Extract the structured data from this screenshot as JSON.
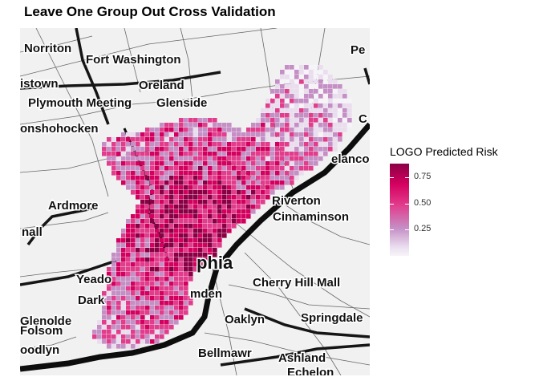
{
  "title": "Leave One Group Out Cross Validation",
  "map": {
    "place_labels": [
      {
        "name": "Norriton",
        "id": "norriton"
      },
      {
        "name": "Fort Washington",
        "id": "fort-washington"
      },
      {
        "name": "Pe",
        "id": "pe"
      },
      {
        "name": "istown",
        "id": "istown"
      },
      {
        "name": "Oreland",
        "id": "oreland"
      },
      {
        "name": "Plymouth Meeting",
        "id": "plymouth-meeting"
      },
      {
        "name": "Glenside",
        "id": "glenside"
      },
      {
        "name": "onshohocken",
        "id": "onshohocken"
      },
      {
        "name": "C",
        "id": "c"
      },
      {
        "name": "elanco",
        "id": "elanco"
      },
      {
        "name": "Ardmore",
        "id": "ardmore"
      },
      {
        "name": "Riverton",
        "id": "riverton"
      },
      {
        "name": "Cinnaminson",
        "id": "cinnaminson"
      },
      {
        "name": "nall",
        "id": "nall"
      },
      {
        "name": "phia",
        "id": "phia"
      },
      {
        "name": "Yeado",
        "id": "yeado"
      },
      {
        "name": "Cherry Hill Mall",
        "id": "cherry-hill-mall"
      },
      {
        "name": "mden",
        "id": "mden"
      },
      {
        "name": "Dark",
        "id": "dark"
      },
      {
        "name": "Glenolde",
        "id": "glenolde"
      },
      {
        "name": "Oaklyn",
        "id": "oaklyn"
      },
      {
        "name": "Springdale",
        "id": "springdale"
      },
      {
        "name": "Folsom",
        "id": "folsom"
      },
      {
        "name": "oodlyn",
        "id": "oodlyn"
      },
      {
        "name": "Bellmawr",
        "id": "bellmawr"
      },
      {
        "name": "Ashland",
        "id": "ashland"
      },
      {
        "name": "Echelon",
        "id": "echelon"
      }
    ]
  },
  "legend": {
    "title": "LOGO Predicted Risk",
    "breaks": [
      {
        "value": 0.75,
        "label": "0.75"
      },
      {
        "value": 0.5,
        "label": "0.50"
      },
      {
        "value": 0.25,
        "label": "0.25"
      }
    ],
    "range": [
      0.0,
      0.88
    ]
  },
  "colors": {
    "scale": [
      "#f7f4f9",
      "#e9ddee",
      "#c58fc6",
      "#e23c8d",
      "#d4005f",
      "#8b0045"
    ],
    "water": "#d6d6d6",
    "river": "#101010"
  }
}
